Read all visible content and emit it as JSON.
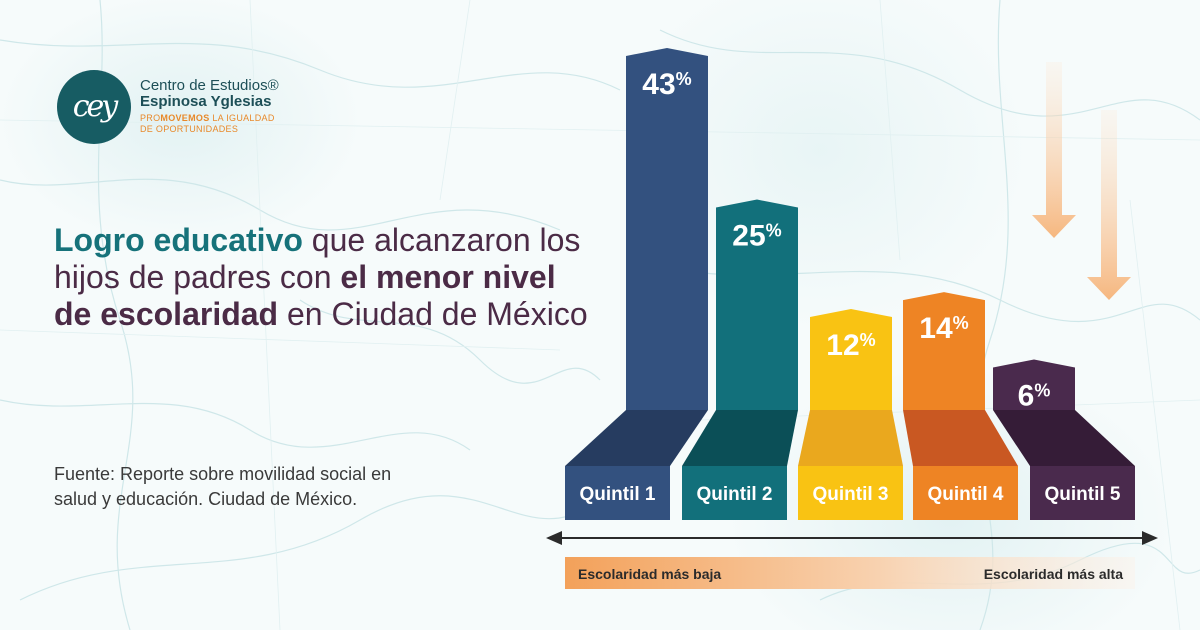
{
  "logo": {
    "letters": "cey",
    "line1": "Centro de Estudios®",
    "line2": "Espinosa Yglesias",
    "tagline_prefix": "PRO",
    "tagline_bold": "MOVEMOS",
    "tagline_rest": " LA IGUALDAD",
    "tagline_line2": "DE OPORTUNIDADES"
  },
  "headline": {
    "part1": "Logro educativo",
    "part2": " que alcanzaron los hijos de padres con ",
    "part3": "el menor nivel de escolaridad",
    "part4": " en Ciudad de México"
  },
  "source": "Fuente: Reporte sobre movilidad social en salud y educación. Ciudad de México.",
  "chart_data": {
    "type": "bar",
    "title": "",
    "categories": [
      "Quintil 1",
      "Quintil 2",
      "Quintil 3",
      "Quintil 4",
      "Quintil 5"
    ],
    "values": [
      43,
      25,
      12,
      14,
      6
    ],
    "value_labels": [
      "43",
      "25",
      "12",
      "14",
      "6"
    ],
    "value_suffix": "%",
    "colors_top": [
      "#33517f",
      "#12707b",
      "#f9c313",
      "#ee8424",
      "#4a2a4d"
    ],
    "colors_shade": [
      "#263c60",
      "#0b4f57",
      "#eaa81e",
      "#c95822",
      "#351c37"
    ],
    "colors_base": [
      "#33517f",
      "#12707b",
      "#f9c313",
      "#ee8424",
      "#4a2a4d"
    ],
    "axis_labels": {
      "low": "Escolaridad más baja",
      "high": "Escolaridad más alta"
    },
    "xlabel": "",
    "ylabel": "",
    "ylim": [
      0,
      43
    ]
  }
}
